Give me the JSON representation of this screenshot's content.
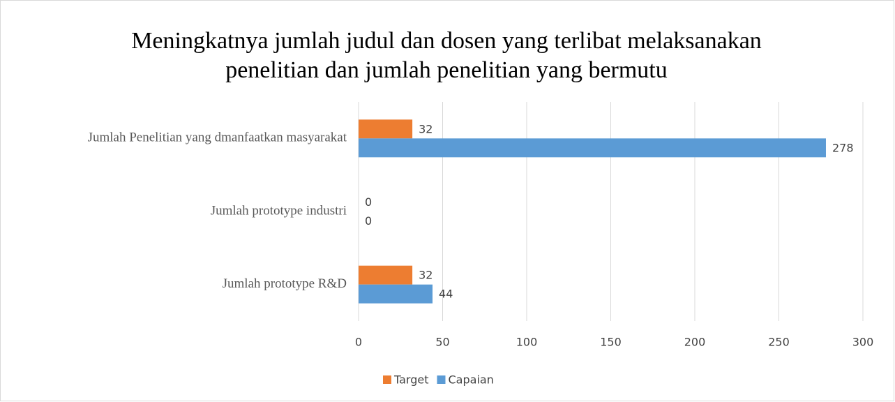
{
  "chart_data": {
    "type": "barh",
    "title": "Meningkatnya jumlah judul dan dosen yang terlibat melaksanakan penelitian dan jumlah penelitian yang bermutu",
    "categories": [
      "Jumlah Penelitian yang dmanfaatkan masyarakat",
      "Jumlah prototype industri",
      "Jumlah prototype R&D"
    ],
    "series": [
      {
        "name": "Target",
        "color": "#ed7d31",
        "values": [
          32,
          0,
          32
        ]
      },
      {
        "name": "Capaian",
        "color": "#5b9bd5",
        "values": [
          278,
          0,
          44
        ]
      }
    ],
    "xlim": [
      0,
      300
    ],
    "xticks": [
      0,
      50,
      100,
      150,
      200,
      250,
      300
    ],
    "grid": true,
    "legend": "bottom"
  }
}
